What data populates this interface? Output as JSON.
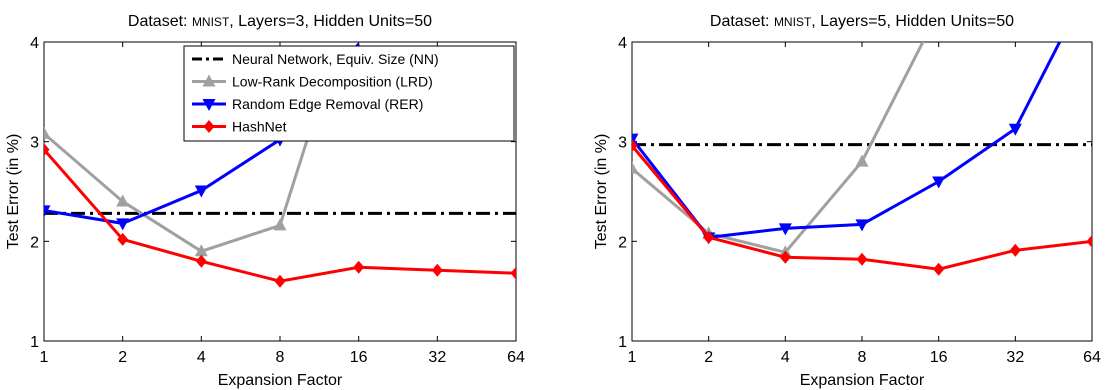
{
  "colors": {
    "nn": "#000000",
    "lrd": "#a0a0a0",
    "rer": "#0000ff",
    "hashnet": "#ff0000"
  },
  "chart_data": [
    {
      "type": "line",
      "title": {
        "prefix": "Dataset: ",
        "dataset": "MNIST",
        "suffix": ",  Layers=3,  Hidden Units=50"
      },
      "xlabel": "Expansion Factor",
      "ylabel": "Test Error (in %)",
      "x_scale": "log2",
      "x": [
        1,
        2,
        4,
        8,
        16,
        32,
        64
      ],
      "xtick_labels": [
        "1",
        "2",
        "4",
        "8",
        "16",
        "32",
        "64"
      ],
      "ylim": [
        1,
        4
      ],
      "yticks": [
        1,
        2,
        3,
        4
      ],
      "legend_position": "top-right",
      "series": [
        {
          "name": "Neural Network, Equiv. Size (NN)",
          "color": "#000000",
          "style": "dash-dot",
          "marker": "none",
          "x": [
            1,
            64
          ],
          "values": [
            2.28,
            2.28
          ]
        },
        {
          "name": "Low-Rank Decomposition (LRD)",
          "color": "#a0a0a0",
          "style": "solid",
          "marker": "triangle-up",
          "x": [
            1,
            2,
            4,
            8,
            13
          ],
          "values": [
            3.08,
            2.4,
            1.9,
            2.16,
            3.9
          ]
        },
        {
          "name": "Random Edge Removal (RER)",
          "color": "#0000ff",
          "style": "solid",
          "marker": "triangle-down",
          "x": [
            1,
            2,
            4,
            8,
            16
          ],
          "values": [
            2.31,
            2.18,
            2.51,
            3.02,
            3.98
          ]
        },
        {
          "name": "HashNet",
          "color": "#ff0000",
          "style": "solid",
          "marker": "diamond",
          "x": [
            1,
            2,
            4,
            8,
            16,
            32,
            64
          ],
          "values": [
            2.92,
            2.02,
            1.8,
            1.6,
            1.74,
            1.71,
            1.68
          ]
        }
      ]
    },
    {
      "type": "line",
      "title": {
        "prefix": "Dataset: ",
        "dataset": "MNIST",
        "suffix": ",  Layers=5,  Hidden Units=50"
      },
      "xlabel": "Expansion Factor",
      "ylabel": "Test Error (in %)",
      "x_scale": "log2",
      "x": [
        1,
        2,
        4,
        8,
        16,
        32,
        64
      ],
      "xtick_labels": [
        "1",
        "2",
        "4",
        "8",
        "16",
        "32",
        "64"
      ],
      "ylim": [
        1,
        4
      ],
      "yticks": [
        1,
        2,
        3,
        4
      ],
      "series": [
        {
          "name": "Neural Network, Equiv. Size (NN)",
          "color": "#000000",
          "style": "dash-dot",
          "marker": "none",
          "x": [
            1,
            64
          ],
          "values": [
            2.97,
            2.97
          ]
        },
        {
          "name": "Low-Rank Decomposition (LRD)",
          "color": "#a0a0a0",
          "style": "solid",
          "marker": "triangle-up",
          "x": [
            1,
            2,
            4,
            8,
            14
          ],
          "values": [
            2.73,
            2.08,
            1.89,
            2.8,
            4.02
          ]
        },
        {
          "name": "Random Edge Removal (RER)",
          "color": "#0000ff",
          "style": "solid",
          "marker": "triangle-down",
          "x": [
            1,
            2,
            4,
            8,
            16,
            32,
            48
          ],
          "values": [
            3.03,
            2.04,
            2.13,
            2.17,
            2.6,
            3.13,
            4.01
          ]
        },
        {
          "name": "HashNet",
          "color": "#ff0000",
          "style": "solid",
          "marker": "diamond",
          "x": [
            1,
            2,
            4,
            8,
            16,
            32,
            64
          ],
          "values": [
            2.96,
            2.04,
            1.84,
            1.82,
            1.72,
            1.91,
            2.0
          ]
        }
      ]
    }
  ]
}
